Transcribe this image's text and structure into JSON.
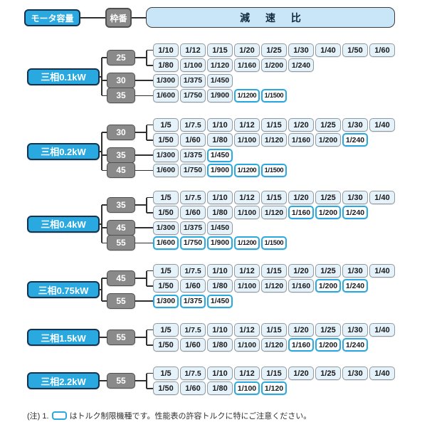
{
  "header": {
    "motor_capacity_label": "モータ容量",
    "frame_label": "枠番",
    "ratio_label": "減 速 比"
  },
  "colors": {
    "accent_blue": "#29a9e0",
    "capacity_border": "#14324e",
    "frame_gray": "#8a8a8a",
    "frame_border": "#4f4f4f",
    "ratio_fill": "#e6f2fa",
    "ratio_border": "#8f9aa2",
    "ratio_tl_fill": "#fdfeff",
    "ratio_header_fill": "#c9e6f8",
    "line_color": "#2f2f2f"
  },
  "note": {
    "prefix": "(注) 1.",
    "text": "はトルク制限機種です。性能表の許容トルクに特にご注意ください。"
  },
  "blocks": [
    {
      "capacity": "三相0.1kW",
      "frames": [
        {
          "label": "25",
          "rows": [
            [
              {
                "r": "1/10"
              },
              {
                "r": "1/12"
              },
              {
                "r": "1/15"
              },
              {
                "r": "1/20"
              },
              {
                "r": "1/25"
              },
              {
                "r": "1/30"
              },
              {
                "r": "1/40"
              },
              {
                "r": "1/50"
              },
              {
                "r": "1/60"
              }
            ],
            [
              {
                "r": "1/80"
              },
              {
                "r": "1/100"
              },
              {
                "r": "1/120"
              },
              {
                "r": "1/160"
              },
              {
                "r": "1/200"
              },
              {
                "r": "1/240"
              }
            ]
          ]
        },
        {
          "label": "30",
          "rows": [
            [
              {
                "r": "1/300"
              },
              {
                "r": "1/375"
              },
              {
                "r": "1/450"
              }
            ]
          ]
        },
        {
          "label": "35",
          "rows": [
            [
              {
                "r": "1/600"
              },
              {
                "r": "1/750"
              },
              {
                "r": "1/900"
              },
              {
                "r": "1/1200",
                "tl": true
              },
              {
                "r": "1/1500",
                "tl": true
              }
            ]
          ]
        }
      ]
    },
    {
      "capacity": "三相0.2kW",
      "frames": [
        {
          "label": "30",
          "rows": [
            [
              {
                "r": "1/5"
              },
              {
                "r": "1/7.5"
              },
              {
                "r": "1/10"
              },
              {
                "r": "1/12"
              },
              {
                "r": "1/15"
              },
              {
                "r": "1/20"
              },
              {
                "r": "1/25"
              },
              {
                "r": "1/30"
              },
              {
                "r": "1/40"
              }
            ],
            [
              {
                "r": "1/50"
              },
              {
                "r": "1/60"
              },
              {
                "r": "1/80"
              },
              {
                "r": "1/100"
              },
              {
                "r": "1/120"
              },
              {
                "r": "1/160"
              },
              {
                "r": "1/200"
              },
              {
                "r": "1/240",
                "tl": true
              }
            ]
          ]
        },
        {
          "label": "35",
          "rows": [
            [
              {
                "r": "1/300"
              },
              {
                "r": "1/375"
              },
              {
                "r": "1/450",
                "tl": true
              }
            ]
          ]
        },
        {
          "label": "45",
          "rows": [
            [
              {
                "r": "1/600"
              },
              {
                "r": "1/750"
              },
              {
                "r": "1/900",
                "tl": true
              },
              {
                "r": "1/1200",
                "tl": true
              },
              {
                "r": "1/1500",
                "tl": true
              }
            ]
          ]
        }
      ]
    },
    {
      "capacity": "三相0.4kW",
      "frames": [
        {
          "label": "35",
          "rows": [
            [
              {
                "r": "1/5"
              },
              {
                "r": "1/7.5"
              },
              {
                "r": "1/10"
              },
              {
                "r": "1/12"
              },
              {
                "r": "1/15"
              },
              {
                "r": "1/20"
              },
              {
                "r": "1/25"
              },
              {
                "r": "1/30"
              },
              {
                "r": "1/40"
              }
            ],
            [
              {
                "r": "1/50"
              },
              {
                "r": "1/60"
              },
              {
                "r": "1/80"
              },
              {
                "r": "1/100"
              },
              {
                "r": "1/120"
              },
              {
                "r": "1/160",
                "tl": true
              },
              {
                "r": "1/200",
                "tl": true
              },
              {
                "r": "1/240",
                "tl": true
              }
            ]
          ]
        },
        {
          "label": "45",
          "rows": [
            [
              {
                "r": "1/300"
              },
              {
                "r": "1/375"
              },
              {
                "r": "1/450"
              }
            ]
          ]
        },
        {
          "label": "55",
          "rows": [
            [
              {
                "r": "1/600",
                "tl": true
              },
              {
                "r": "1/750",
                "tl": true
              },
              {
                "r": "1/900",
                "tl": true
              },
              {
                "r": "1/1200",
                "tl": true
              },
              {
                "r": "1/1500",
                "tl": true
              }
            ]
          ]
        }
      ]
    },
    {
      "capacity": "三相0.75kW",
      "frames": [
        {
          "label": "45",
          "rows": [
            [
              {
                "r": "1/5"
              },
              {
                "r": "1/7.5"
              },
              {
                "r": "1/10"
              },
              {
                "r": "1/12"
              },
              {
                "r": "1/15"
              },
              {
                "r": "1/20"
              },
              {
                "r": "1/25"
              },
              {
                "r": "1/30"
              },
              {
                "r": "1/40"
              }
            ],
            [
              {
                "r": "1/50"
              },
              {
                "r": "1/60"
              },
              {
                "r": "1/80"
              },
              {
                "r": "1/100"
              },
              {
                "r": "1/120"
              },
              {
                "r": "1/160"
              },
              {
                "r": "1/200",
                "tl": true
              },
              {
                "r": "1/240",
                "tl": true
              }
            ]
          ]
        },
        {
          "label": "55",
          "rows": [
            [
              {
                "r": "1/300",
                "tl": true
              },
              {
                "r": "1/375",
                "tl": true
              },
              {
                "r": "1/450",
                "tl": true
              }
            ]
          ]
        }
      ]
    },
    {
      "capacity": "三相1.5kW",
      "frames": [
        {
          "label": "55",
          "rows": [
            [
              {
                "r": "1/5"
              },
              {
                "r": "1/7.5"
              },
              {
                "r": "1/10"
              },
              {
                "r": "1/12"
              },
              {
                "r": "1/15"
              },
              {
                "r": "1/20"
              },
              {
                "r": "1/25"
              },
              {
                "r": "1/30"
              },
              {
                "r": "1/40"
              }
            ],
            [
              {
                "r": "1/50"
              },
              {
                "r": "1/60"
              },
              {
                "r": "1/80"
              },
              {
                "r": "1/100"
              },
              {
                "r": "1/120"
              },
              {
                "r": "1/160",
                "tl": true
              },
              {
                "r": "1/200",
                "tl": true
              },
              {
                "r": "1/240",
                "tl": true
              }
            ]
          ]
        }
      ]
    },
    {
      "capacity": "三相2.2kW",
      "frames": [
        {
          "label": "55",
          "rows": [
            [
              {
                "r": "1/5"
              },
              {
                "r": "1/7.5"
              },
              {
                "r": "1/10"
              },
              {
                "r": "1/12"
              },
              {
                "r": "1/15"
              },
              {
                "r": "1/20"
              },
              {
                "r": "1/25"
              },
              {
                "r": "1/30"
              },
              {
                "r": "1/40"
              }
            ],
            [
              {
                "r": "1/50"
              },
              {
                "r": "1/60"
              },
              {
                "r": "1/80"
              },
              {
                "r": "1/100",
                "tl": true
              },
              {
                "r": "1/120",
                "tl": true
              }
            ]
          ]
        }
      ]
    }
  ]
}
